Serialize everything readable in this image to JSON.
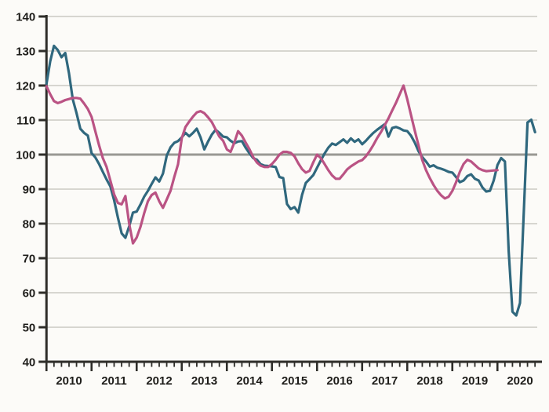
{
  "chart_data": {
    "type": "line",
    "title": "",
    "legend": "none",
    "grid": "horizontal",
    "x_unit": "month",
    "x_start": "2010-01",
    "x_year_labels": [
      "2010",
      "2011",
      "2012",
      "2013",
      "2014",
      "2015",
      "2016",
      "2017",
      "2018",
      "2019",
      "2020"
    ],
    "y_ticks": [
      40,
      50,
      60,
      70,
      80,
      90,
      100,
      110,
      120,
      130,
      140
    ],
    "ylim": [
      40,
      140
    ],
    "xlim_years": [
      2010,
      2020.95
    ],
    "reference_line": 100,
    "minor_ticks_per_year": 6,
    "colors": {
      "series1": "#30687e",
      "series2": "#ba5384",
      "grid": "#d7d6d0",
      "reference": "#999893",
      "axis": "#2e2d29",
      "background": "#fcfbf8",
      "text": "#1e1d1a"
    },
    "series": [
      {
        "id": "series1",
        "color": "#30687e",
        "start": "2010-01",
        "end": "2020-11",
        "values": [
          120.5,
          127.0,
          131.5,
          130.3,
          128.2,
          129.4,
          123.5,
          116.0,
          112.0,
          107.5,
          106.3,
          105.5,
          100.4,
          99.2,
          97.3,
          95.0,
          92.8,
          90.8,
          86.8,
          81.8,
          77.2,
          75.9,
          79.2,
          83.2,
          83.5,
          85.5,
          87.8,
          89.5,
          91.5,
          93.4,
          92.2,
          94.5,
          99.7,
          102.1,
          103.4,
          103.9,
          105.0,
          106.3,
          105.3,
          106.3,
          107.5,
          105.0,
          101.5,
          103.8,
          105.8,
          107.2,
          106.3,
          105.2,
          105.0,
          104.0,
          103.3,
          103.8,
          103.9,
          102.0,
          100.4,
          99.0,
          98.5,
          97.2,
          96.8,
          96.7,
          96.6,
          96.4,
          93.5,
          93.2,
          85.7,
          84.2,
          84.8,
          83.2,
          88.3,
          91.8,
          92.9,
          94.1,
          96.2,
          98.3,
          100.3,
          102.0,
          103.2,
          102.8,
          103.6,
          104.4,
          103.4,
          104.7,
          103.7,
          104.4,
          103.0,
          104.0,
          105.2,
          106.3,
          107.2,
          108.0,
          108.8,
          105.2,
          107.7,
          108.0,
          107.6,
          107.0,
          106.8,
          105.5,
          103.5,
          101.0,
          99.3,
          98.0,
          96.5,
          96.9,
          96.2,
          95.9,
          95.5,
          95.0,
          94.8,
          93.5,
          92.0,
          92.5,
          93.8,
          94.3,
          93.0,
          92.5,
          90.5,
          89.3,
          89.5,
          92.5,
          97.0,
          99.0,
          98.0,
          72.0,
          54.5,
          53.4,
          57.0,
          83.0,
          109.3,
          110.1,
          106.5
        ]
      },
      {
        "id": "series2",
        "color": "#ba5384",
        "start": "2010-01",
        "end": "2020-01",
        "values": [
          119.8,
          117.5,
          115.5,
          114.9,
          115.3,
          115.8,
          116.1,
          116.4,
          116.4,
          116.2,
          114.8,
          113.2,
          110.9,
          106.8,
          102.7,
          99.0,
          96.4,
          92.5,
          88.5,
          86.0,
          85.6,
          88.0,
          80.0,
          74.3,
          76.0,
          79.0,
          83.0,
          86.5,
          88.3,
          89.0,
          86.5,
          84.6,
          87.0,
          89.5,
          93.5,
          97.2,
          104.8,
          108.0,
          109.6,
          111.0,
          112.2,
          112.6,
          112.0,
          110.8,
          109.4,
          107.3,
          105.2,
          104.0,
          101.5,
          100.8,
          103.5,
          106.8,
          105.5,
          103.5,
          101.6,
          99.3,
          97.7,
          96.8,
          96.4,
          96.4,
          97.3,
          98.5,
          100.0,
          100.8,
          100.8,
          100.5,
          99.5,
          97.5,
          95.8,
          94.8,
          95.3,
          97.8,
          100.0,
          99.0,
          97.3,
          95.5,
          94.0,
          93.0,
          93.0,
          94.3,
          95.7,
          96.6,
          97.3,
          98.0,
          98.4,
          99.5,
          101.0,
          102.8,
          104.8,
          106.5,
          108.5,
          110.5,
          112.8,
          115.0,
          117.5,
          120.0,
          116.0,
          111.5,
          107.0,
          102.7,
          98.4,
          95.5,
          93.2,
          91.2,
          89.5,
          88.2,
          87.3,
          87.8,
          89.5,
          92.0,
          95.0,
          97.3,
          98.5,
          98.0,
          97.0,
          96.0,
          95.5,
          95.2,
          95.3,
          95.4,
          95.5
        ]
      }
    ]
  }
}
